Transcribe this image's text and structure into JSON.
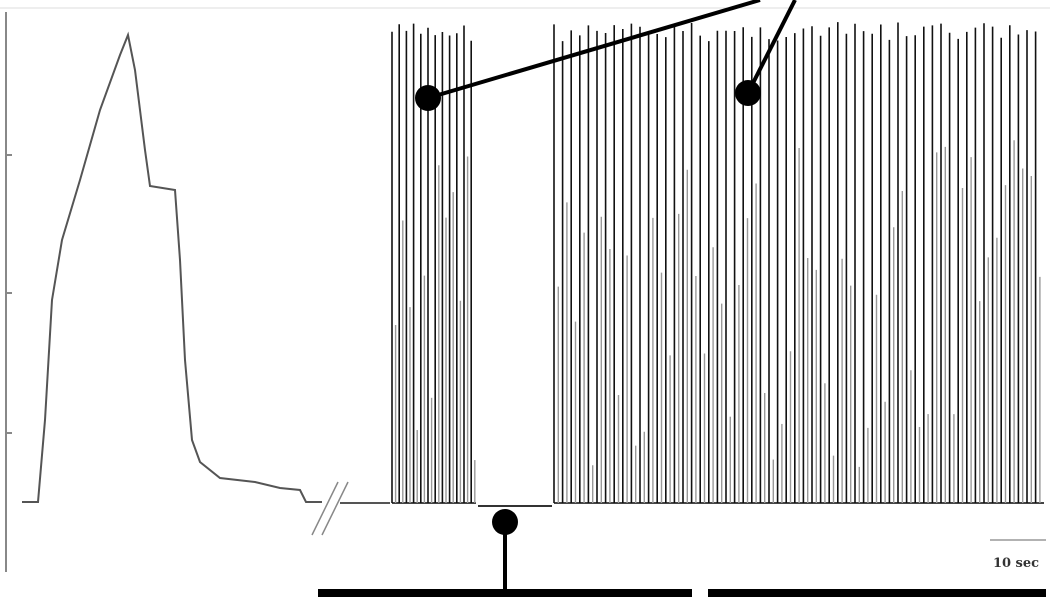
{
  "scale_bar": {
    "label": "10 sec"
  }
}
